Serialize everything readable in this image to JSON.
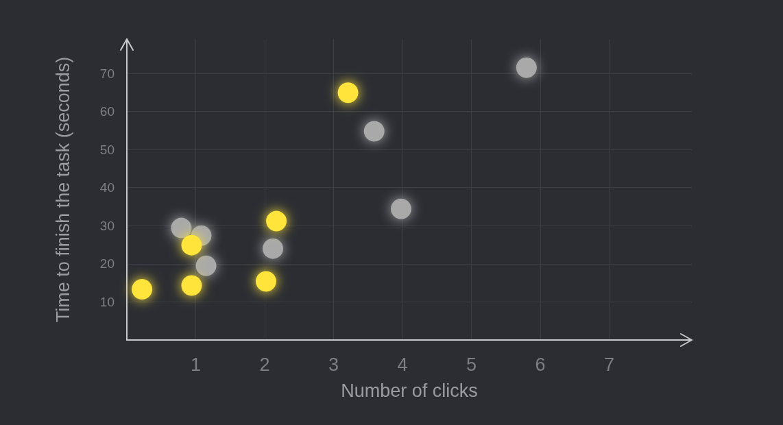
{
  "chart_data": {
    "type": "scatter",
    "xlabel": "Number of clicks",
    "ylabel": "Time to finish the task (seconds)",
    "xlim": [
      0,
      8.2
    ],
    "xticks": [
      1,
      2,
      3,
      4,
      5,
      6,
      7
    ],
    "ylim": [
      0,
      79
    ],
    "yticks": [
      10,
      20,
      30,
      40,
      50,
      60,
      70
    ],
    "grid": true,
    "marker": "circle",
    "series": [
      {
        "color": "#a9a9a9",
        "x": [
          0.79,
          1.08,
          1.15,
          2.12,
          3.59,
          3.98,
          5.8
        ],
        "values": [
          29.4,
          27.4,
          19.5,
          24,
          54.8,
          34.4,
          71.5
        ]
      },
      {
        "color": "#ffe53b",
        "x": [
          0.22,
          0.94,
          0.94,
          2.02,
          2.17,
          3.21
        ],
        "values": [
          13.3,
          14.3,
          24.9,
          15.4,
          31.2,
          64.9
        ]
      }
    ]
  }
}
